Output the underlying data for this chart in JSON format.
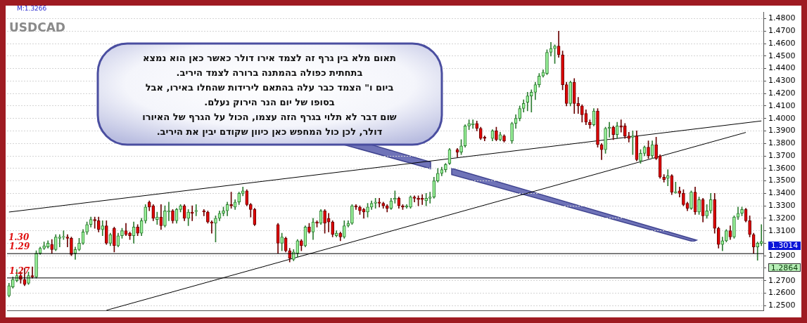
{
  "chart_data": {
    "type": "candlestick",
    "title": "USDCAD",
    "annotations": [
      "M:1.3266",
      "תאום מלא בין גרף זה לצמד אירו דולר כאשר כאן הוא נמצא\nבתחתית כפולה בהמתנה ברורה לצמד היריב.\nביום ו\" הצמד כבר עלה בהתאם לירידות שהחלו באירו, אבל\nבסופו של יום הנר הירוק נעלם.\nשום דבר לא תלוי בגרף הזה עצמו, הכול על הגרף של האיורו\nדולר, לכן כול המחפש כאן כיוון שקודם יבין את היריב.",
      "1.30",
      "1.3014",
      "1.2864"
    ],
    "categories": [
      null,
      null,
      null,
      null,
      null,
      null,
      null,
      null,
      null,
      null,
      null,
      null,
      null,
      null,
      null,
      null,
      null,
      null,
      null,
      null,
      null,
      null,
      null,
      null,
      null,
      null,
      null,
      null,
      null,
      null,
      null,
      null,
      null,
      null,
      null,
      null,
      null,
      null,
      null,
      null,
      null,
      null,
      null,
      null,
      null,
      null,
      null,
      null,
      null,
      null,
      null,
      null,
      null,
      null,
      null,
      null,
      null,
      null,
      null,
      null,
      null,
      null,
      null,
      null,
      null,
      null,
      null,
      null,
      null,
      null,
      null,
      null,
      null,
      null,
      null,
      null,
      null,
      null,
      null,
      null,
      null,
      null,
      null,
      null,
      null,
      null,
      null,
      null,
      null,
      null,
      null,
      null,
      null,
      null,
      null,
      null,
      null,
      null,
      null,
      null,
      null,
      null,
      null,
      null,
      null,
      null,
      null,
      null,
      null,
      null,
      null,
      null,
      null,
      null,
      null,
      null,
      null,
      null,
      null,
      null,
      null,
      null,
      null,
      null,
      null,
      null,
      null,
      null,
      null,
      null,
      null,
      null,
      null,
      null,
      null,
      null,
      null,
      null,
      null,
      null,
      null,
      null,
      null,
      null,
      null,
      null,
      null,
      null,
      null,
      null,
      null,
      null,
      null,
      null,
      null,
      null,
      null,
      null,
      null,
      null,
      null,
      null,
      null,
      null,
      null,
      null,
      null,
      null,
      null,
      null,
      null,
      null,
      null,
      null,
      null,
      null,
      null,
      null,
      null,
      null,
      null,
      null,
      null,
      null,
      null,
      null,
      null,
      null,
      null,
      null,
      null,
      null,
      null,
      null
    ],
    "ohlc": [
      [
        1.258,
        1.268,
        1.257,
        1.266
      ],
      [
        1.265,
        1.273,
        1.264,
        1.271
      ],
      [
        1.27,
        1.279,
        1.269,
        1.274
      ],
      [
        1.274,
        1.277,
        1.268,
        1.271
      ],
      [
        1.271,
        1.28,
        1.266,
        1.267
      ],
      [
        1.268,
        1.277,
        1.267,
        1.274
      ],
      [
        1.274,
        1.281,
        1.272,
        1.273
      ],
      [
        1.273,
        1.294,
        1.272,
        1.292
      ],
      [
        1.292,
        1.297,
        1.291,
        1.296
      ],
      [
        1.296,
        1.301,
        1.295,
        1.298
      ],
      [
        1.297,
        1.302,
        1.296,
        1.3
      ],
      [
        1.299,
        1.303,
        1.292,
        1.295
      ],
      [
        1.295,
        1.307,
        1.294,
        1.305
      ],
      [
        1.304,
        1.307,
        1.297,
        1.305
      ],
      [
        1.3048,
        1.31,
        1.303,
        1.3052
      ],
      [
        1.305,
        1.307,
        1.297,
        1.304
      ],
      [
        1.304,
        1.305,
        1.29,
        1.291
      ],
      [
        1.292,
        1.297,
        1.287,
        1.295
      ],
      [
        1.295,
        1.304,
        1.294,
        1.3
      ],
      [
        1.3,
        1.311,
        1.299,
        1.309
      ],
      [
        1.309,
        1.317,
        1.307,
        1.315
      ],
      [
        1.315,
        1.321,
        1.313,
        1.319
      ],
      [
        1.319,
        1.321,
        1.312,
        1.318
      ],
      [
        1.318,
        1.321,
        1.309,
        1.311
      ],
      [
        1.311,
        1.318,
        1.306,
        1.314
      ],
      [
        1.314,
        1.318,
        1.299,
        1.3
      ],
      [
        1.3,
        1.308,
        1.298,
        1.307
      ],
      [
        1.312,
        1.313,
        1.293,
        1.298
      ],
      [
        1.298,
        1.308,
        1.297,
        1.306
      ],
      [
        1.306,
        1.312,
        1.304,
        1.31
      ],
      [
        1.31,
        1.316,
        1.306,
        1.307
      ],
      [
        1.308,
        1.309,
        1.303,
        1.306
      ],
      [
        1.306,
        1.317,
        1.3,
        1.313
      ],
      [
        1.313,
        1.315,
        1.306,
        1.308
      ],
      [
        1.308,
        1.32,
        1.306,
        1.318
      ],
      [
        1.318,
        1.331,
        1.316,
        1.329
      ],
      [
        1.333,
        1.334,
        1.326,
        1.329
      ],
      [
        1.33,
        1.331,
        1.318,
        1.32
      ],
      [
        1.319,
        1.325,
        1.315,
        1.321
      ],
      [
        1.321,
        1.331,
        1.311,
        1.314
      ],
      [
        1.314,
        1.33,
        1.313,
        1.326
      ],
      [
        1.325,
        1.333,
        1.318,
        1.326
      ],
      [
        1.326,
        1.327,
        1.316,
        1.318
      ],
      [
        1.318,
        1.328,
        1.316,
        1.327
      ],
      [
        1.327,
        1.331,
        1.325,
        1.33
      ],
      [
        1.33,
        1.331,
        1.318,
        1.32
      ],
      [
        1.32,
        1.327,
        1.314,
        1.325
      ],
      [
        1.325,
        1.33,
        1.318,
        1.324
      ],
      [
        1.3255,
        1.331,
        1.322,
        1.3262
      ],
      null,
      [
        1.326,
        1.327,
        1.322,
        1.325
      ],
      [
        1.325,
        1.326,
        1.316,
        1.317
      ],
      [
        1.317,
        1.318,
        1.308,
        1.316
      ],
      [
        1.316,
        1.322,
        1.301,
        1.32
      ],
      [
        1.32,
        1.326,
        1.318,
        1.324
      ],
      [
        1.324,
        1.329,
        1.322,
        1.326
      ],
      [
        1.326,
        1.333,
        1.322,
        1.331
      ],
      [
        1.331,
        1.341,
        1.328,
        1.33
      ],
      [
        1.329,
        1.335,
        1.327,
        1.333
      ],
      [
        1.333,
        1.341,
        1.331,
        1.34
      ],
      [
        1.34,
        1.345,
        1.338,
        1.342
      ],
      [
        1.342,
        1.343,
        1.33,
        1.331
      ],
      [
        1.331,
        1.332,
        1.321,
        1.327
      ],
      [
        1.327,
        1.328,
        1.314,
        1.315
      ],
      null,
      null,
      null,
      null,
      null,
      [
        1.315,
        1.316,
        1.292,
        1.3
      ],
      [
        1.3,
        1.308,
        1.294,
        1.305
      ],
      [
        1.304,
        1.305,
        1.293,
        1.294
      ],
      [
        1.294,
        1.296,
        1.285,
        1.288
      ],
      [
        1.287,
        1.295,
        1.286,
        1.293
      ],
      [
        1.292,
        1.303,
        1.289,
        1.302
      ],
      [
        1.302,
        1.303,
        1.294,
        1.298
      ],
      [
        1.298,
        1.314,
        1.297,
        1.313
      ],
      [
        1.313,
        1.316,
        1.308,
        1.309
      ],
      [
        1.309,
        1.32,
        1.303,
        1.317
      ],
      [
        1.317,
        1.318,
        1.313,
        1.316
      ],
      [
        1.316,
        1.327,
        1.315,
        1.326
      ],
      [
        1.326,
        1.327,
        1.308,
        1.316
      ],
      [
        1.32,
        1.324,
        1.309,
        1.317
      ],
      [
        1.317,
        1.318,
        1.305,
        1.307
      ],
      [
        1.306,
        1.31,
        1.305,
        1.308
      ],
      [
        1.308,
        1.309,
        1.302,
        1.305
      ],
      [
        1.305,
        1.318,
        1.304,
        1.314
      ],
      [
        1.314,
        1.318,
        1.313,
        1.316
      ],
      [
        1.316,
        1.331,
        1.315,
        1.33
      ],
      [
        1.33,
        1.331,
        1.327,
        1.329
      ],
      [
        1.329,
        1.33,
        1.323,
        1.326
      ],
      [
        1.327,
        1.328,
        1.32,
        1.325
      ],
      [
        1.325,
        1.332,
        1.321,
        1.329
      ],
      [
        1.329,
        1.334,
        1.327,
        1.332
      ],
      [
        1.332,
        1.336,
        1.328,
        1.333
      ],
      [
        1.333,
        1.336,
        1.329,
        1.332
      ],
      [
        1.332,
        1.333,
        1.328,
        1.33
      ],
      [
        1.33,
        1.331,
        1.325,
        1.328
      ],
      [
        1.328,
        1.336,
        1.327,
        1.334
      ],
      [
        1.335,
        1.342,
        1.332,
        1.336
      ],
      [
        1.336,
        1.337,
        1.328,
        1.33
      ],
      [
        1.33,
        1.331,
        1.327,
        1.329
      ],
      [
        1.329,
        1.331,
        1.328,
        1.33
      ],
      [
        1.329,
        1.338,
        1.328,
        1.337
      ],
      [
        1.337,
        1.338,
        1.333,
        1.336
      ],
      [
        1.336,
        1.338,
        1.33,
        1.335
      ],
      [
        1.336,
        1.339,
        1.331,
        1.335
      ],
      [
        1.334,
        1.34,
        1.33,
        1.336
      ],
      [
        1.336,
        1.341,
        1.332,
        1.337
      ],
      [
        1.337,
        1.353,
        1.336,
        1.35
      ],
      [
        1.35,
        1.36,
        1.349,
        1.356
      ],
      [
        1.356,
        1.361,
        1.354,
        1.359
      ],
      [
        1.359,
        1.364,
        1.357,
        1.363
      ],
      [
        1.364,
        1.376,
        1.363,
        1.375
      ],
      null,
      [
        1.375,
        1.376,
        1.369,
        1.373
      ],
      [
        1.373,
        1.383,
        1.371,
        1.378
      ],
      [
        1.378,
        1.395,
        1.377,
        1.394
      ],
      [
        1.394,
        1.399,
        1.391,
        1.396
      ],
      [
        1.395,
        1.399,
        1.392,
        1.396
      ],
      [
        1.396,
        1.398,
        1.39,
        1.392
      ],
      [
        1.392,
        1.393,
        1.383,
        1.384
      ],
      [
        1.385,
        1.386,
        1.382,
        1.384
      ],
      null,
      [
        1.384,
        1.391,
        1.382,
        1.39
      ],
      [
        1.39,
        1.393,
        1.382,
        1.383
      ],
      [
        1.383,
        1.389,
        1.382,
        1.387
      ],
      [
        1.386,
        1.387,
        1.381,
        1.382
      ],
      null,
      [
        1.382,
        1.397,
        1.38,
        1.396
      ],
      [
        1.396,
        1.403,
        1.392,
        1.4
      ],
      [
        1.4,
        1.41,
        1.398,
        1.408
      ],
      [
        1.408,
        1.415,
        1.405,
        1.412
      ],
      [
        1.413,
        1.421,
        1.406,
        1.418
      ],
      [
        1.418,
        1.423,
        1.405,
        1.421
      ],
      [
        1.421,
        1.429,
        1.415,
        1.427
      ],
      [
        1.427,
        1.436,
        1.425,
        1.434
      ],
      [
        1.434,
        1.439,
        1.433,
        1.437
      ],
      [
        1.436,
        1.455,
        1.435,
        1.453
      ],
      [
        1.453,
        1.461,
        1.45,
        1.456
      ],
      [
        1.456,
        1.459,
        1.444,
        1.458
      ],
      [
        1.458,
        1.47,
        1.449,
        1.451
      ],
      [
        1.451,
        1.454,
        1.423,
        1.427
      ],
      [
        1.427,
        1.429,
        1.41,
        1.412
      ],
      [
        1.412,
        1.43,
        1.41,
        1.429
      ],
      [
        1.429,
        1.432,
        1.404,
        1.412
      ],
      [
        1.412,
        1.417,
        1.404,
        1.41
      ],
      [
        1.41,
        1.411,
        1.397,
        1.403
      ],
      [
        1.404,
        1.407,
        1.395,
        1.397
      ],
      [
        1.397,
        1.399,
        1.392,
        1.395
      ],
      [
        1.395,
        1.408,
        1.394,
        1.406
      ],
      [
        1.406,
        1.408,
        1.377,
        1.379
      ],
      [
        1.379,
        1.38,
        1.367,
        1.375
      ],
      [
        1.375,
        1.393,
        1.372,
        1.392
      ],
      [
        1.392,
        1.397,
        1.385,
        1.393
      ],
      [
        1.393,
        1.394,
        1.383,
        1.387
      ],
      [
        1.387,
        1.397,
        1.384,
        1.394
      ],
      [
        1.394,
        1.399,
        1.389,
        1.393
      ],
      [
        1.394,
        1.396,
        1.384,
        1.386
      ],
      [
        1.386,
        1.389,
        1.381,
        1.384
      ],
      [
        1.385,
        1.39,
        1.371,
        1.386
      ],
      [
        1.386,
        1.39,
        1.366,
        1.367
      ],
      [
        1.366,
        1.375,
        1.364,
        1.372
      ],
      [
        1.372,
        1.378,
        1.37,
        1.377
      ],
      [
        1.377,
        1.382,
        1.368,
        1.37
      ],
      [
        1.37,
        1.382,
        1.368,
        1.379
      ],
      [
        1.379,
        1.385,
        1.367,
        1.368
      ],
      [
        1.37,
        1.371,
        1.352,
        1.353
      ],
      [
        1.353,
        1.355,
        1.349,
        1.351
      ],
      [
        1.352,
        1.359,
        1.346,
        1.354
      ],
      [
        1.354,
        1.355,
        1.339,
        1.341
      ],
      [
        1.3405,
        1.349,
        1.34,
        1.3412
      ],
      [
        1.342,
        1.345,
        1.337,
        1.34
      ],
      [
        1.34,
        1.343,
        1.33,
        1.331
      ],
      [
        1.332,
        1.333,
        1.326,
        1.328
      ],
      [
        1.328,
        1.342,
        1.327,
        1.341
      ],
      [
        1.341,
        1.345,
        1.323,
        1.325
      ],
      [
        1.325,
        1.337,
        1.323,
        1.335
      ],
      [
        1.335,
        1.336,
        1.317,
        1.322
      ],
      [
        1.322,
        1.331,
        1.32,
        1.326
      ],
      [
        1.326,
        1.34,
        1.324,
        1.335
      ],
      [
        1.335,
        1.34,
        1.308,
        1.312
      ],
      [
        1.312,
        1.313,
        1.296,
        1.299
      ],
      [
        1.299,
        1.305,
        1.294,
        1.302
      ],
      [
        1.302,
        1.311,
        1.301,
        1.31
      ],
      [
        1.31,
        1.314,
        1.303,
        1.305
      ],
      [
        1.305,
        1.322,
        1.304,
        1.321
      ],
      [
        1.321,
        1.329,
        1.319,
        1.324
      ],
      [
        1.324,
        1.329,
        1.322,
        1.327
      ],
      [
        1.327,
        1.328,
        1.317,
        1.318
      ],
      [
        1.318,
        1.322,
        1.305,
        1.307
      ],
      [
        1.307,
        1.308,
        1.292,
        1.297
      ],
      [
        1.297,
        1.301,
        1.2864,
        1.3
      ],
      [
        1.2998,
        1.315,
        1.298,
        1.3014
      ]
    ],
    "series": [
      {
        "type": "line",
        "color": "#000000",
        "values": [
          1.325,
          null,
          null,
          null,
          null,
          null,
          null,
          null,
          null,
          null,
          null,
          null,
          null,
          null,
          null,
          null,
          null,
          null,
          null,
          null,
          null,
          null,
          null,
          null,
          null,
          null,
          null,
          null,
          null,
          null,
          null,
          null,
          null,
          null,
          null,
          null,
          null,
          null,
          null,
          null,
          null,
          null,
          null,
          null,
          null,
          null,
          null,
          null,
          null,
          null,
          null,
          null,
          null,
          null,
          null,
          null,
          null,
          null,
          null,
          null,
          null,
          null,
          null,
          null,
          null,
          null,
          null,
          null,
          null,
          null,
          null,
          null,
          null,
          null,
          null,
          null,
          null,
          null,
          null,
          null,
          null,
          null,
          null,
          null,
          null,
          null,
          null,
          null,
          null,
          null,
          null,
          null,
          null,
          null,
          null,
          null,
          null,
          null,
          null,
          null,
          null,
          null,
          null,
          null,
          null,
          null,
          null,
          null,
          null,
          null,
          null,
          null,
          null,
          null,
          null,
          null,
          null,
          null,
          null,
          null,
          null,
          null,
          null,
          null,
          null,
          null,
          null,
          null,
          null,
          null,
          null,
          null,
          null,
          null,
          null,
          null,
          null,
          null,
          null,
          null,
          null,
          null,
          null,
          null,
          null,
          null,
          null,
          null,
          null,
          null,
          null,
          null,
          null,
          null,
          null,
          null,
          null,
          null,
          null,
          null,
          null,
          null,
          null,
          null,
          null,
          null,
          null,
          null,
          null,
          null,
          null,
          null,
          null,
          null,
          null,
          null,
          null,
          null,
          null,
          null,
          null,
          null,
          null,
          null,
          null,
          null,
          null,
          null,
          null,
          null,
          null,
          null,
          null,
          1.398
        ]
      },
      {
        "type": "line",
        "color": "#000000",
        "values": [
          null,
          null,
          null,
          null,
          null,
          null,
          null,
          null,
          null,
          null,
          null,
          null,
          null,
          null,
          null,
          null,
          null,
          null,
          null,
          null,
          null,
          null,
          null,
          null,
          null,
          1.2463,
          null,
          null,
          null,
          null,
          null,
          null,
          null,
          null,
          null,
          null,
          null,
          null,
          null,
          null,
          null,
          null,
          null,
          null,
          null,
          null,
          null,
          null,
          null,
          null,
          null,
          null,
          null,
          null,
          null,
          null,
          null,
          null,
          null,
          null,
          null,
          null,
          null,
          null,
          null,
          null,
          null,
          null,
          null,
          null,
          null,
          null,
          null,
          null,
          null,
          null,
          null,
          null,
          null,
          null,
          null,
          null,
          null,
          null,
          null,
          null,
          null,
          null,
          null,
          null,
          null,
          null,
          null,
          null,
          null,
          null,
          null,
          null,
          null,
          null,
          null,
          null,
          null,
          null,
          null,
          null,
          null,
          null,
          null,
          null,
          null,
          null,
          null,
          null,
          null,
          null,
          null,
          null,
          null,
          null,
          null,
          null,
          null,
          null,
          null,
          null,
          null,
          null,
          null,
          null,
          null,
          null,
          null,
          null,
          null,
          null,
          null,
          null,
          null,
          null,
          null,
          null,
          null,
          null,
          null,
          null,
          null,
          null,
          null,
          null,
          null,
          null,
          null,
          null,
          null,
          null,
          null,
          null,
          null,
          null,
          null,
          null,
          null,
          null,
          null,
          null,
          null,
          null,
          null,
          null,
          null,
          null,
          null,
          null,
          null,
          null,
          null,
          null,
          null,
          null,
          null,
          null,
          null,
          null,
          null,
          null,
          null,
          null,
          null,
          1.3888,
          null,
          null,
          null,
          null
        ]
      }
    ],
    "ref_lines": [
      {
        "axis": "y",
        "value": 1.2917,
        "label": "1.29",
        "color": "#000000"
      },
      {
        "axis": "y",
        "value": 1.2722,
        "label": "1.27",
        "color": "#000000"
      }
    ],
    "ylim": [
      1.246,
      1.485
    ],
    "yticks": [
      {
        "value": 1.25,
        "label": "1.2500"
      },
      {
        "value": 1.26,
        "label": "1.2600"
      },
      {
        "value": 1.27,
        "label": "1.2700"
      },
      {
        "value": 1.28,
        "label": null
      },
      {
        "value": 1.29,
        "label": "1.2900"
      },
      {
        "value": 1.3,
        "label": null
      },
      {
        "value": 1.31,
        "label": "1.3100"
      },
      {
        "value": 1.32,
        "label": "1.3200"
      },
      {
        "value": 1.33,
        "label": "1.3300"
      },
      {
        "value": 1.34,
        "label": "1.3400"
      },
      {
        "value": 1.35,
        "label": "1.3500"
      },
      {
        "value": 1.36,
        "label": "1.3600"
      },
      {
        "value": 1.37,
        "label": "1.3700"
      },
      {
        "value": 1.38,
        "label": "1.3800"
      },
      {
        "value": 1.39,
        "label": "1.3900"
      },
      {
        "value": 1.4,
        "label": "1.4000"
      },
      {
        "value": 1.41,
        "label": "1.4100"
      },
      {
        "value": 1.42,
        "label": "1.4200"
      },
      {
        "value": 1.43,
        "label": "1.4300"
      },
      {
        "value": 1.44,
        "label": "1.4400"
      },
      {
        "value": 1.45,
        "label": "1.4500"
      },
      {
        "value": 1.46,
        "label": "1.4600"
      },
      {
        "value": 1.47,
        "label": "1.4700"
      },
      {
        "value": 1.48,
        "label": "1.4800"
      }
    ],
    "grid": "y",
    "tick_labels": "y"
  }
}
